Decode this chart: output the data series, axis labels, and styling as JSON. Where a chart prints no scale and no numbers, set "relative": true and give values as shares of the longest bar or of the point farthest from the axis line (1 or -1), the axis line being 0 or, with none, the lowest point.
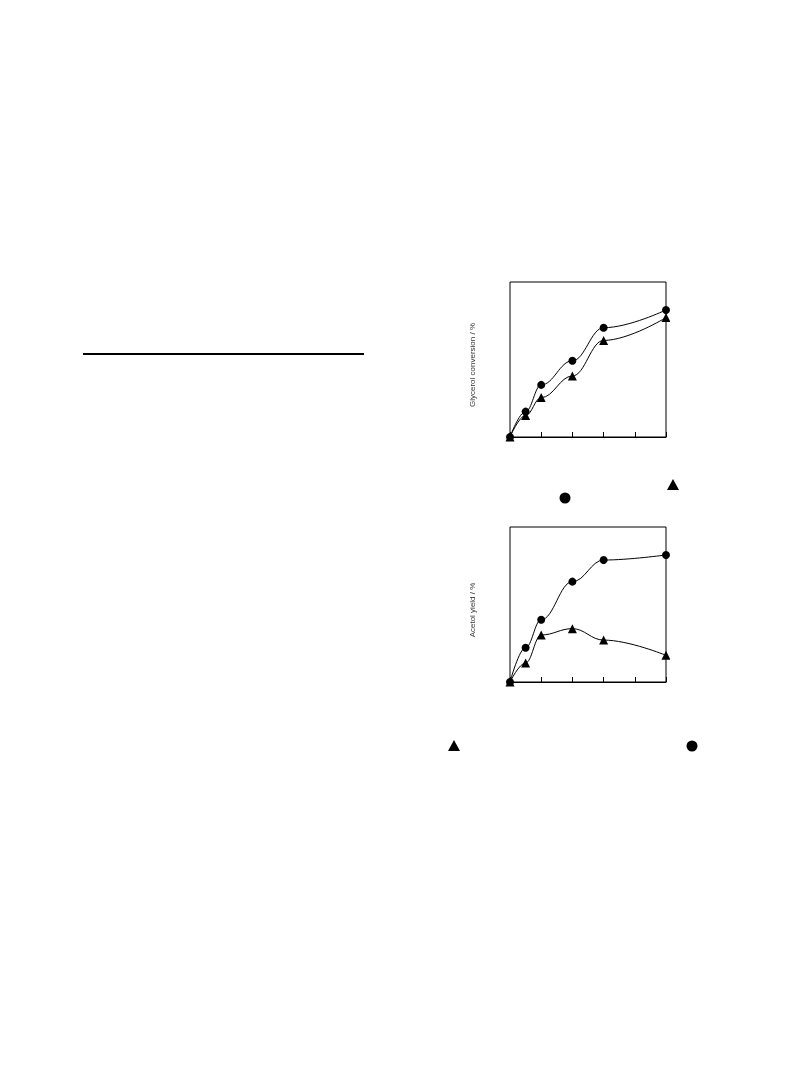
{
  "chart_data": [
    {
      "type": "line",
      "ylabel": "Glycerol conversion / %",
      "relative": true,
      "categories": [
        null,
        null,
        null,
        null,
        null,
        null,
        null,
        null,
        null,
        null,
        null
      ],
      "grid": false,
      "series": [
        {
          "color": "#000000",
          "marker": "triangle",
          "values": [
            0,
            0.17,
            0.31,
            null,
            0.48,
            null,
            0.76,
            null,
            null,
            null,
            0.94
          ]
        },
        {
          "color": "#000000",
          "marker": "circle",
          "values": [
            0,
            0.2,
            0.41,
            null,
            0.6,
            null,
            0.86,
            null,
            null,
            null,
            1
          ]
        }
      ]
    },
    {
      "type": "line",
      "ylabel": "Acetol yield / %",
      "relative": true,
      "categories": [
        null,
        null,
        null,
        null,
        null,
        null,
        null,
        null,
        null,
        null,
        null
      ],
      "grid": false,
      "series": [
        {
          "color": "#000000",
          "marker": "triangle",
          "values": [
            0,
            0.15,
            0.37,
            null,
            0.42,
            null,
            0.33,
            null,
            null,
            null,
            0.21
          ]
        },
        {
          "color": "#000000",
          "marker": "circle",
          "values": [
            0,
            0.27,
            0.49,
            null,
            0.79,
            null,
            0.96,
            null,
            null,
            null,
            1
          ]
        }
      ]
    }
  ]
}
